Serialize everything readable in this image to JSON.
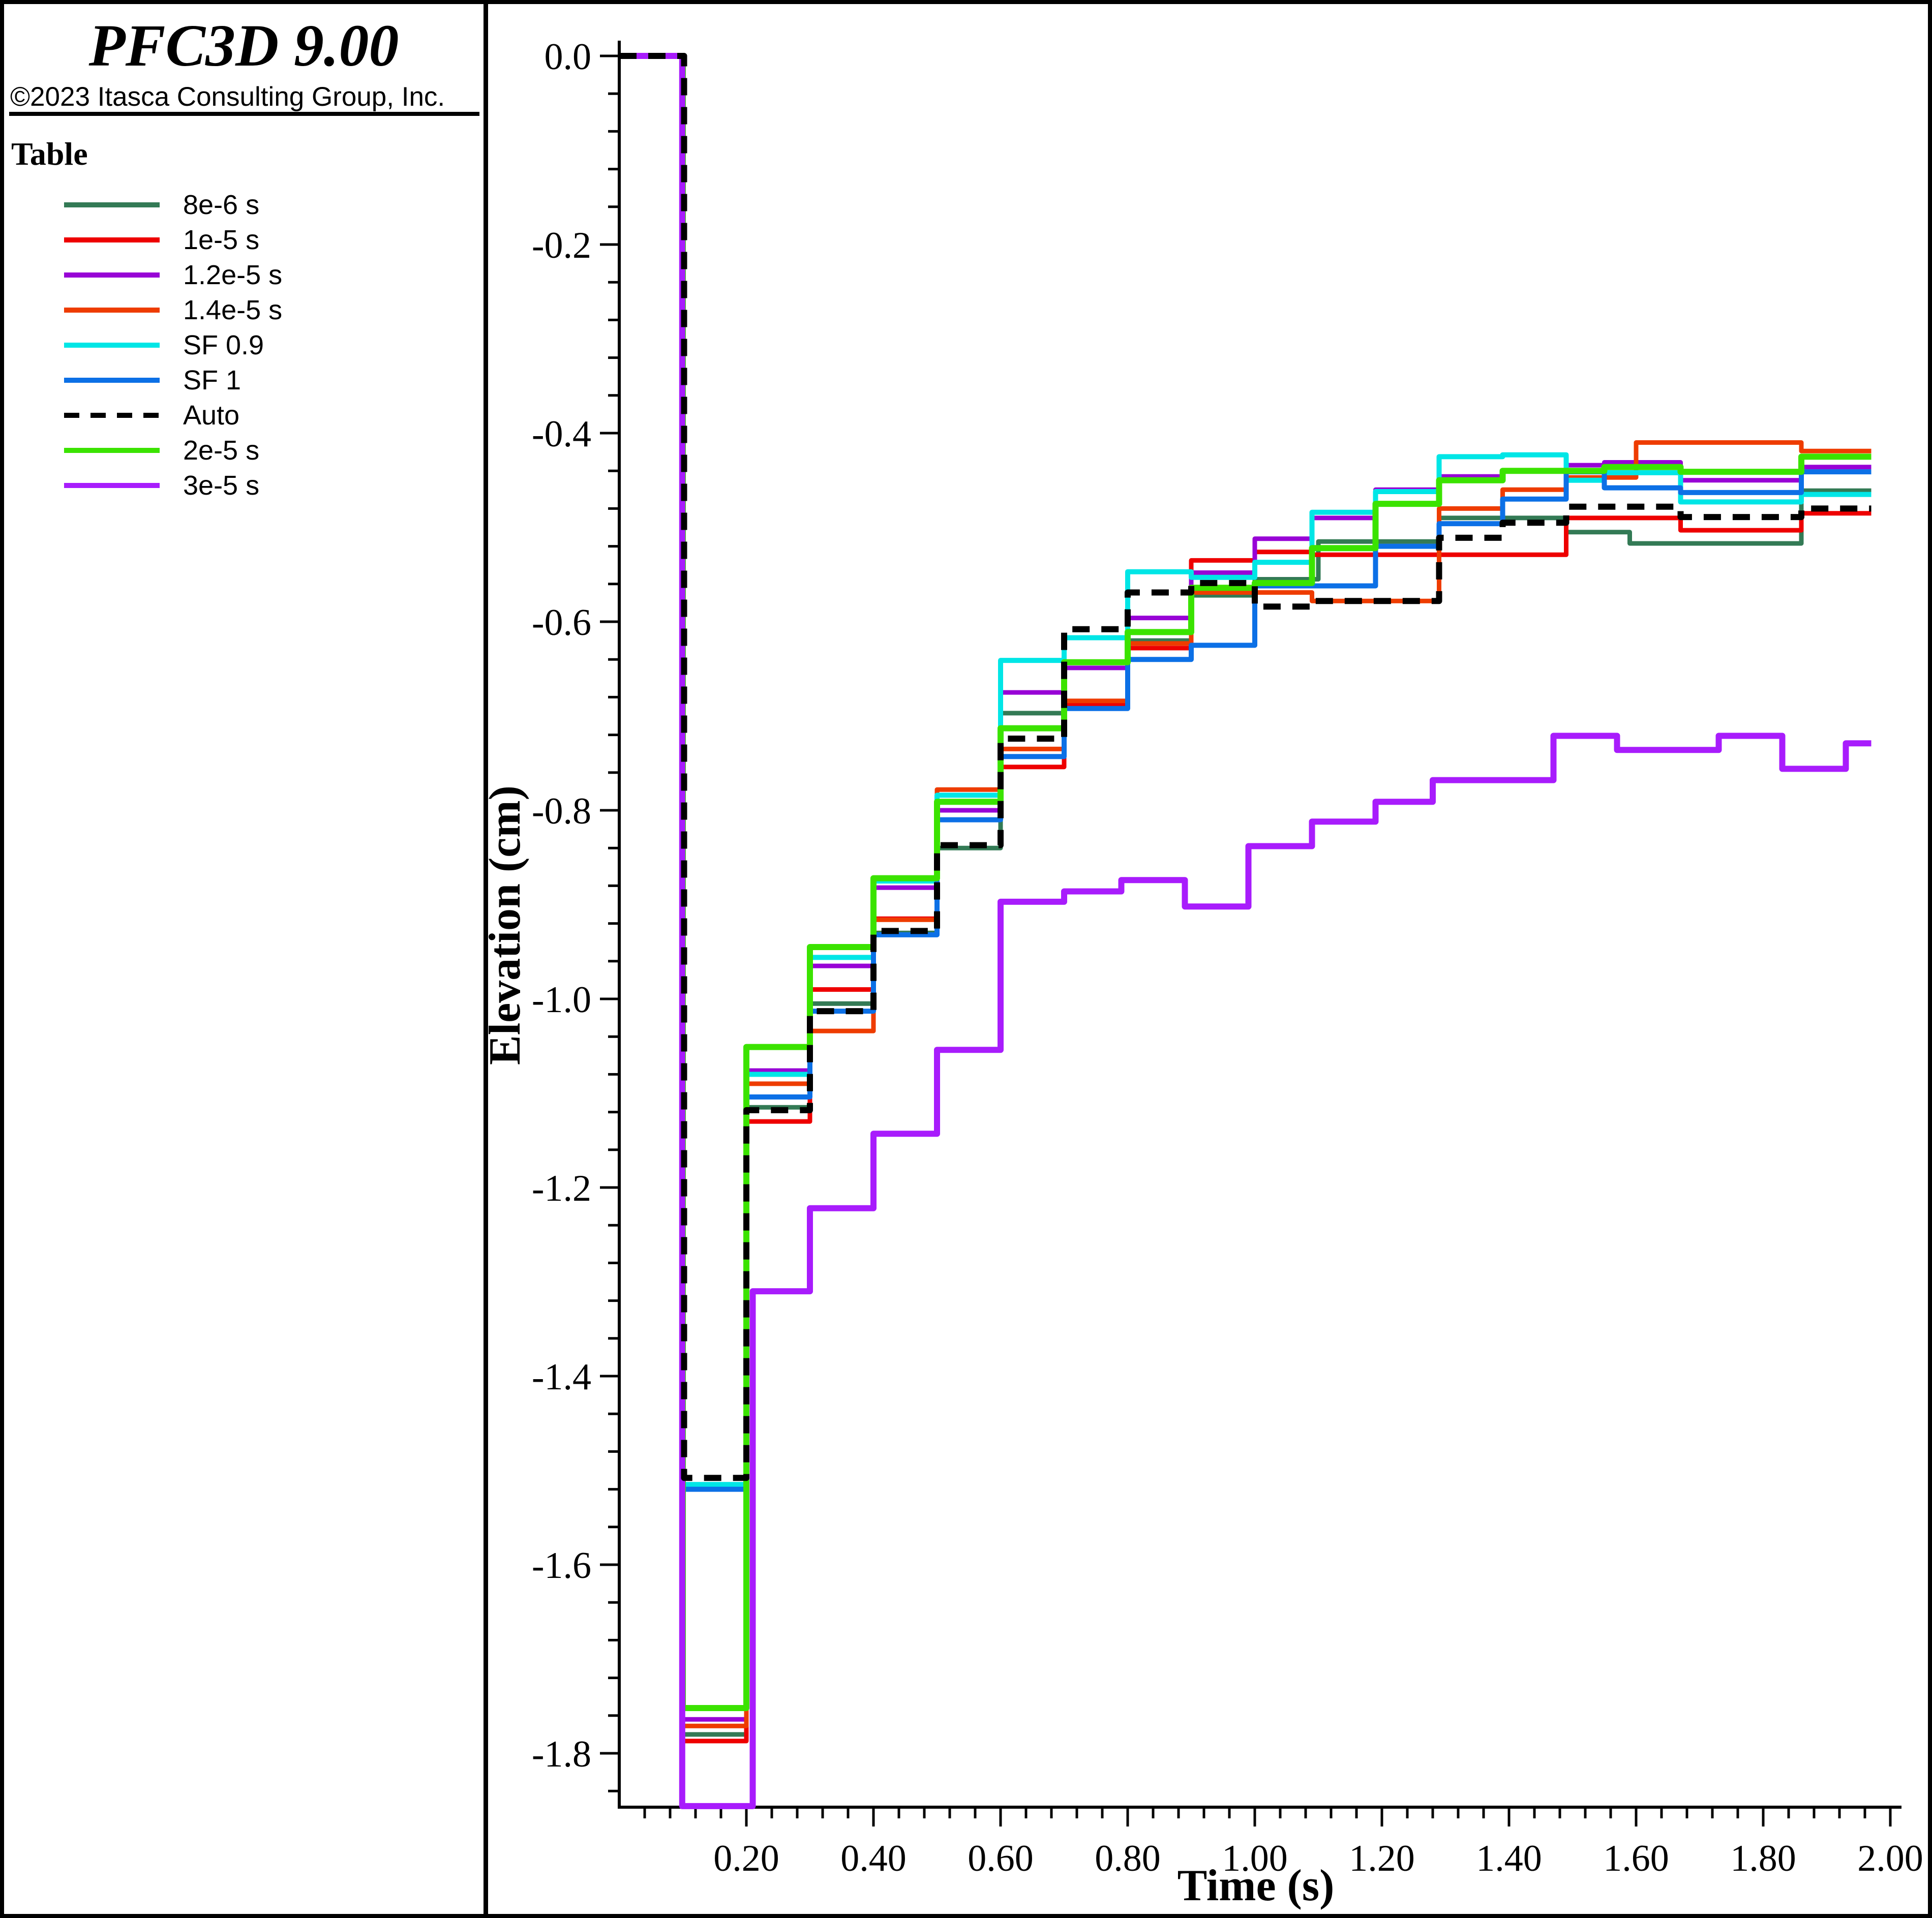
{
  "header": {
    "title": "PFC3D 9.00",
    "copyright": "©2023 Itasca Consulting Group, Inc."
  },
  "legend": {
    "title": "Table",
    "items": [
      {
        "label": "8e-6 s",
        "color": "#337A55",
        "dashed": false
      },
      {
        "label": "1e-5 s",
        "color": "#EE0000",
        "dashed": false
      },
      {
        "label": "1.2e-5 s",
        "color": "#9803D6",
        "dashed": false
      },
      {
        "label": "1.4e-5 s",
        "color": "#EE3C00",
        "dashed": false
      },
      {
        "label": "SF 0.9",
        "color": "#00E6E6",
        "dashed": false
      },
      {
        "label": "SF 1",
        "color": "#0C70E6",
        "dashed": false
      },
      {
        "label": "Auto",
        "color": "#000000",
        "dashed": true
      },
      {
        "label": "2e-5 s",
        "color": "#3BE300",
        "dashed": false
      },
      {
        "label": "3e-5 s",
        "color": "#A81CFC",
        "dashed": false
      }
    ]
  },
  "chart_data": {
    "type": "line",
    "subtype": "step-post",
    "title": "",
    "xlabel": "Time (s)",
    "ylabel": "Elevation (cm)",
    "xlim": [
      0,
      2.0
    ],
    "ylim": [
      -1.86,
      0.0
    ],
    "grid": false,
    "legend_position": "left-panel",
    "x_major_ticks": [
      0.2,
      0.4,
      0.6,
      0.8,
      1.0,
      1.2,
      1.4,
      1.6,
      1.8,
      2.0
    ],
    "x_tick_labels": [
      "0.20",
      "0.40",
      "0.60",
      "0.80",
      "1.00",
      "1.20",
      "1.40",
      "1.60",
      "1.80",
      "2.00"
    ],
    "x_minor_step": 0.04,
    "y_major_ticks": [
      0,
      -0.2,
      -0.4,
      -0.6,
      -0.8,
      -1.0,
      -1.2,
      -1.4,
      -1.6,
      -1.8
    ],
    "y_tick_labels": [
      "0.0",
      "-0.2",
      "-0.4",
      "-0.6",
      "-0.8",
      "-1.0",
      "-1.2",
      "-1.4",
      "-1.6",
      "-1.8"
    ],
    "y_minor_step": 0.04,
    "end_time": 1.97,
    "series": [
      {
        "name": "8e-6 s",
        "color": "#337A55",
        "width": 9,
        "dash": null,
        "steps": [
          [
            0,
            0
          ],
          [
            0.1,
            -1.78
          ],
          [
            0.2,
            -1.115
          ],
          [
            0.3,
            -1.005
          ],
          [
            0.4,
            -0.93
          ],
          [
            0.5,
            -0.84
          ],
          [
            0.6,
            -0.697
          ],
          [
            0.7,
            -0.687
          ],
          [
            0.8,
            -0.62
          ],
          [
            0.9,
            -0.572
          ],
          [
            1.0,
            -0.555
          ],
          [
            1.1,
            -0.515
          ],
          [
            1.29,
            -0.49
          ],
          [
            1.49,
            -0.505
          ],
          [
            1.59,
            -0.517
          ],
          [
            1.86,
            -0.461
          ]
        ]
      },
      {
        "name": "1e-5 s",
        "color": "#EE0000",
        "width": 9,
        "dash": null,
        "steps": [
          [
            0,
            0
          ],
          [
            0.1,
            -1.787
          ],
          [
            0.2,
            -1.13
          ],
          [
            0.3,
            -0.99
          ],
          [
            0.4,
            -0.915
          ],
          [
            0.5,
            -0.81
          ],
          [
            0.6,
            -0.754
          ],
          [
            0.7,
            -0.688
          ],
          [
            0.8,
            -0.628
          ],
          [
            0.9,
            -0.535
          ],
          [
            1.0,
            -0.526
          ],
          [
            1.09,
            -0.529
          ],
          [
            1.49,
            -0.49
          ],
          [
            1.67,
            -0.503
          ],
          [
            1.86,
            -0.485
          ]
        ]
      },
      {
        "name": "1.2e-5 s",
        "color": "#9803D6",
        "width": 9,
        "dash": null,
        "steps": [
          [
            0,
            0
          ],
          [
            0.1,
            -1.764
          ],
          [
            0.2,
            -1.076
          ],
          [
            0.3,
            -0.965
          ],
          [
            0.4,
            -0.882
          ],
          [
            0.5,
            -0.8
          ],
          [
            0.6,
            -0.675
          ],
          [
            0.7,
            -0.649
          ],
          [
            0.8,
            -0.596
          ],
          [
            0.9,
            -0.548
          ],
          [
            1.0,
            -0.512
          ],
          [
            1.09,
            -0.49
          ],
          [
            1.19,
            -0.46
          ],
          [
            1.29,
            -0.446
          ],
          [
            1.39,
            -0.44
          ],
          [
            1.49,
            -0.434
          ],
          [
            1.55,
            -0.431
          ],
          [
            1.67,
            -0.45
          ],
          [
            1.86,
            -0.436
          ]
        ]
      },
      {
        "name": "1.4e-5 s",
        "color": "#EE3C00",
        "width": 9,
        "dash": null,
        "steps": [
          [
            0,
            0
          ],
          [
            0.1,
            -1.771
          ],
          [
            0.2,
            -1.09
          ],
          [
            0.3,
            -1.034
          ],
          [
            0.4,
            -0.916
          ],
          [
            0.5,
            -0.778
          ],
          [
            0.6,
            -0.735
          ],
          [
            0.7,
            -0.684
          ],
          [
            0.8,
            -0.623
          ],
          [
            0.9,
            -0.569
          ],
          [
            1.09,
            -0.578
          ],
          [
            1.29,
            -0.48
          ],
          [
            1.39,
            -0.46
          ],
          [
            1.49,
            -0.447
          ],
          [
            1.6,
            -0.41
          ],
          [
            1.86,
            -0.419
          ]
        ]
      },
      {
        "name": "SF 0.9",
        "color": "#00E6E6",
        "width": 10,
        "dash": null,
        "steps": [
          [
            0,
            0
          ],
          [
            0.1,
            -1.515
          ],
          [
            0.2,
            -1.08
          ],
          [
            0.3,
            -0.956
          ],
          [
            0.4,
            -0.875
          ],
          [
            0.5,
            -0.784
          ],
          [
            0.6,
            -0.641
          ],
          [
            0.7,
            -0.617
          ],
          [
            0.8,
            -0.547
          ],
          [
            0.9,
            -0.553
          ],
          [
            1.0,
            -0.537
          ],
          [
            1.09,
            -0.484
          ],
          [
            1.19,
            -0.462
          ],
          [
            1.29,
            -0.425
          ],
          [
            1.39,
            -0.423
          ],
          [
            1.49,
            -0.45
          ],
          [
            1.55,
            -0.442
          ],
          [
            1.67,
            -0.473
          ],
          [
            1.86,
            -0.465
          ]
        ]
      },
      {
        "name": "SF 1",
        "color": "#0C70E6",
        "width": 10,
        "dash": null,
        "steps": [
          [
            0,
            0
          ],
          [
            0.1,
            -1.52
          ],
          [
            0.2,
            -1.104
          ],
          [
            0.3,
            -1.013
          ],
          [
            0.4,
            -0.932
          ],
          [
            0.5,
            -0.81
          ],
          [
            0.6,
            -0.743
          ],
          [
            0.7,
            -0.692
          ],
          [
            0.8,
            -0.64
          ],
          [
            0.9,
            -0.625
          ],
          [
            1.0,
            -0.562
          ],
          [
            1.19,
            -0.52
          ],
          [
            1.29,
            -0.496
          ],
          [
            1.39,
            -0.47
          ],
          [
            1.49,
            -0.441
          ],
          [
            1.55,
            -0.458
          ],
          [
            1.67,
            -0.463
          ],
          [
            1.86,
            -0.441
          ]
        ]
      },
      {
        "name": "Auto",
        "color": "#000000",
        "width": 12,
        "dash": "34 23",
        "steps": [
          [
            0,
            0
          ],
          [
            0.102,
            -1.508
          ],
          [
            0.2,
            -1.118
          ],
          [
            0.3,
            -1.013
          ],
          [
            0.4,
            -0.928
          ],
          [
            0.5,
            -0.837
          ],
          [
            0.6,
            -0.724
          ],
          [
            0.7,
            -0.608
          ],
          [
            0.8,
            -0.569
          ],
          [
            0.9,
            -0.559
          ],
          [
            1.0,
            -0.584
          ],
          [
            1.09,
            -0.578
          ],
          [
            1.29,
            -0.511
          ],
          [
            1.39,
            -0.495
          ],
          [
            1.49,
            -0.478
          ],
          [
            1.67,
            -0.489
          ],
          [
            1.86,
            -0.48
          ]
        ]
      },
      {
        "name": "2e-5 s",
        "color": "#3BE300",
        "width": 12,
        "dash": null,
        "steps": [
          [
            0,
            0
          ],
          [
            0.1,
            -1.752
          ],
          [
            0.2,
            -1.051
          ],
          [
            0.3,
            -0.945
          ],
          [
            0.4,
            -0.872
          ],
          [
            0.5,
            -0.791
          ],
          [
            0.6,
            -0.713
          ],
          [
            0.7,
            -0.643
          ],
          [
            0.8,
            -0.611
          ],
          [
            0.9,
            -0.564
          ],
          [
            1.0,
            -0.559
          ],
          [
            1.09,
            -0.522
          ],
          [
            1.19,
            -0.475
          ],
          [
            1.29,
            -0.45
          ],
          [
            1.39,
            -0.44
          ],
          [
            1.55,
            -0.436
          ],
          [
            1.67,
            -0.441
          ],
          [
            1.86,
            -0.425
          ]
        ]
      },
      {
        "name": "3e-5 s",
        "color": "#A81CFC",
        "width": 12,
        "dash": null,
        "steps": [
          [
            0,
            0
          ],
          [
            0.099,
            -1.856
          ],
          [
            0.21,
            -1.31
          ],
          [
            0.3,
            -1.222
          ],
          [
            0.4,
            -1.143
          ],
          [
            0.5,
            -1.054
          ],
          [
            0.6,
            -0.897
          ],
          [
            0.7,
            -0.886
          ],
          [
            0.79,
            -0.874
          ],
          [
            0.89,
            -0.902
          ],
          [
            0.99,
            -0.838
          ],
          [
            1.09,
            -0.812
          ],
          [
            1.19,
            -0.791
          ],
          [
            1.28,
            -0.768
          ],
          [
            1.47,
            -0.721
          ],
          [
            1.57,
            -0.736
          ],
          [
            1.73,
            -0.721
          ],
          [
            1.83,
            -0.756
          ],
          [
            1.93,
            -0.729
          ]
        ]
      }
    ]
  }
}
